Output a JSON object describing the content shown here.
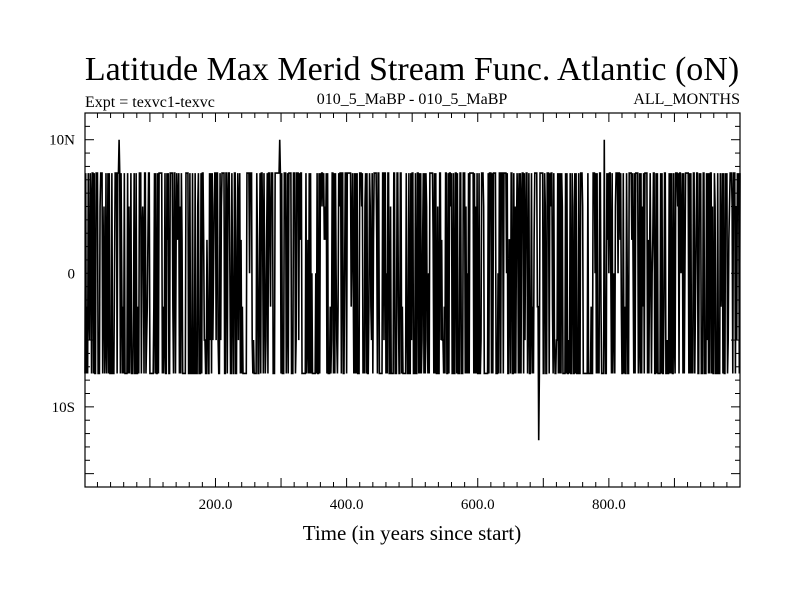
{
  "chart_data": {
    "type": "line",
    "title": "Latitude Max Merid Stream Func. Atlantic (oN)",
    "experiment_label": "Expt = texvc1-texvc",
    "period_label": "010_5_MaBP - 010_5_MaBP",
    "months_label": "ALL_MONTHS",
    "xlabel": "Time (in years since start)",
    "ylabel": "",
    "xlim": [
      1,
      1000
    ],
    "ylim": [
      -16,
      12
    ],
    "x_ticks": [
      {
        "value": 200,
        "label": "200.0"
      },
      {
        "value": 400,
        "label": "400.0"
      },
      {
        "value": 600,
        "label": "600.0"
      },
      {
        "value": 800,
        "label": "800.0"
      }
    ],
    "y_ticks": [
      {
        "value": 10,
        "label": "10N"
      },
      {
        "value": 0,
        "label": "0"
      },
      {
        "value": -10,
        "label": "10S"
      }
    ],
    "series": [
      {
        "name": "latitude of max meridional stream function",
        "values_description_levels": [
          10,
          7.5,
          5,
          2.5,
          0,
          -2.5,
          -5,
          -7.5,
          -12.5
        ],
        "peaks": [
          {
            "x": 53,
            "y": 10
          },
          {
            "x": 298,
            "y": 10
          },
          {
            "x": 793,
            "y": 10
          },
          {
            "x": 693,
            "y": -12.5
          }
        ]
      }
    ]
  }
}
